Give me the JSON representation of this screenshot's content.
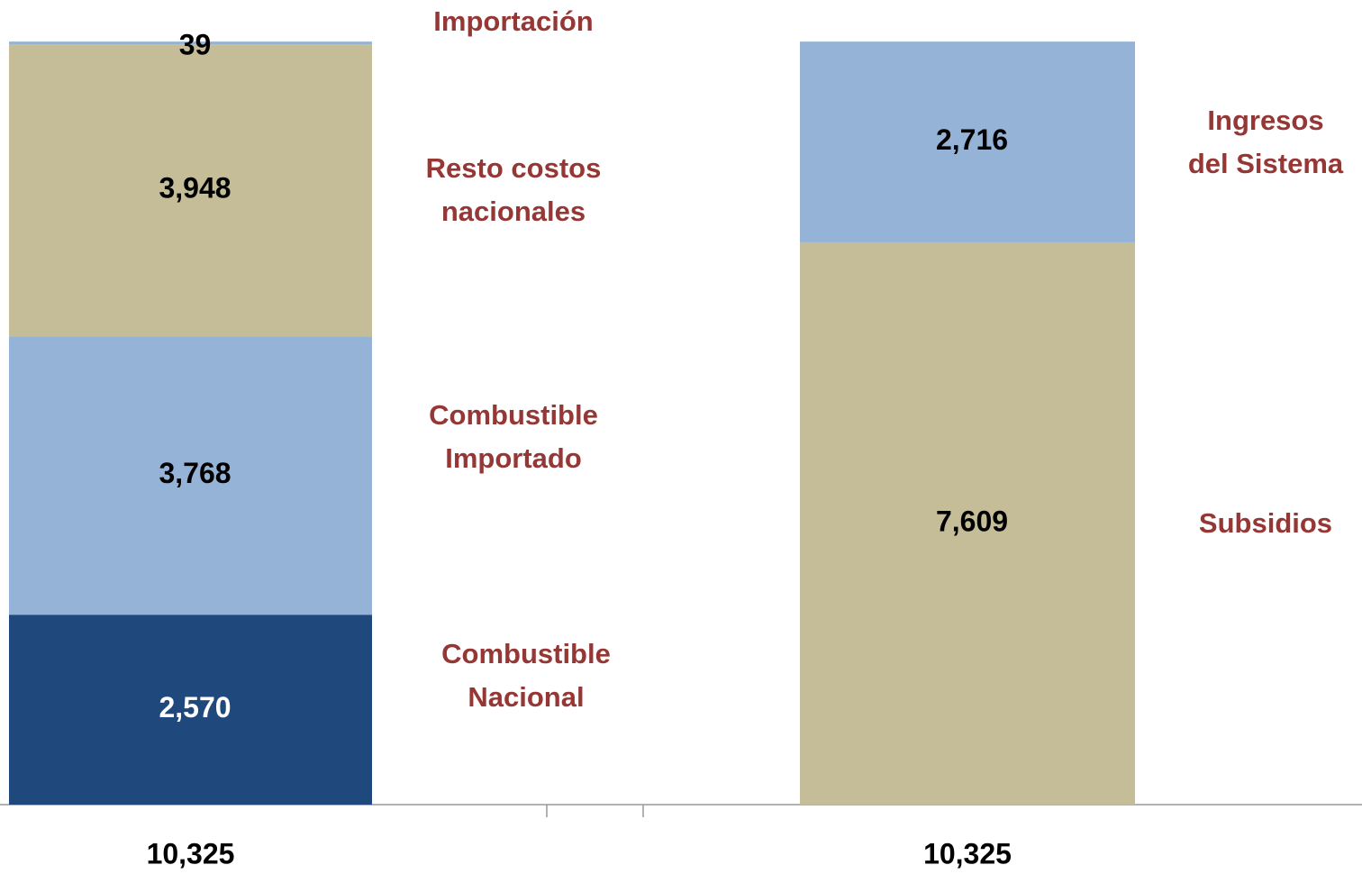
{
  "chart_data": {
    "type": "bar",
    "stacked": true,
    "categories": [
      "10,325",
      "10,325"
    ],
    "series": [
      {
        "name": "Combustible Nacional",
        "color": "#1f497d",
        "values": [
          2570,
          null
        ],
        "value_labels": [
          "2,570",
          null
        ]
      },
      {
        "name": "Combustible Importado",
        "color": "#95b3d7",
        "values": [
          3768,
          null
        ],
        "value_labels": [
          "3,768",
          null
        ]
      },
      {
        "name": "Resto costos nacionales",
        "color": "#c4bd97",
        "values": [
          3948,
          null
        ],
        "value_labels": [
          "3,948",
          null
        ]
      },
      {
        "name": "Importación",
        "color": "#95b3d7",
        "values": [
          39,
          null
        ]
      },
      {
        "name": "Subsidios",
        "color": "#c4bd97",
        "values": [
          null,
          7609
        ],
        "value_labels": [
          null,
          "7,609"
        ]
      },
      {
        "name": "Ingresos del Sistema",
        "color": "#95b3d7",
        "values": [
          null,
          2716
        ],
        "value_labels": [
          null,
          "2,716"
        ]
      }
    ],
    "ylim": [
      0,
      10400
    ]
  }
}
